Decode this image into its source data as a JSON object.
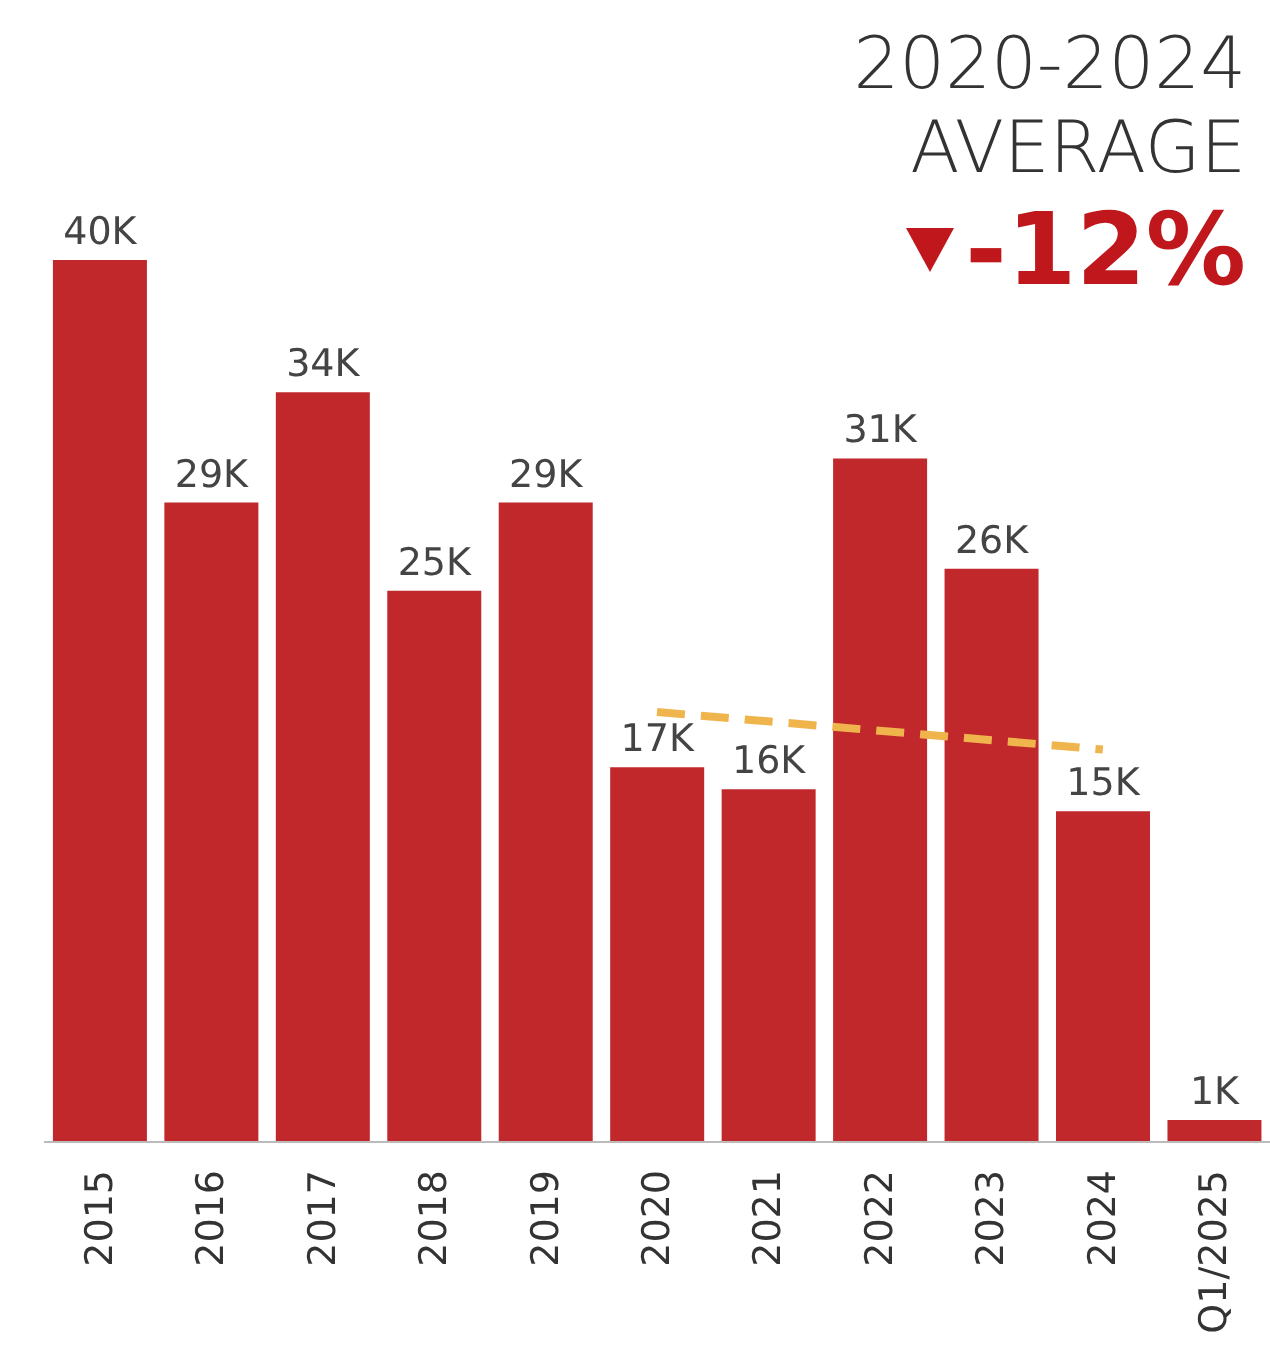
{
  "chart_data": {
    "type": "bar",
    "title": "2020-2024\nAVERAGE",
    "annotations": [
      "-12%"
    ],
    "categories": [
      "2015",
      "2016",
      "2017",
      "2018",
      "2019",
      "2020",
      "2021",
      "2022",
      "2023",
      "2024",
      "Q1/2025"
    ],
    "series": [
      {
        "color": "#c0282b",
        "values": [
          40,
          29,
          34,
          25,
          29,
          17,
          16,
          31,
          26,
          15,
          1
        ],
        "value_labels": [
          "40K",
          "29K",
          "34K",
          "25K",
          "29K",
          "17K",
          "16K",
          "31K",
          "26K",
          "15K",
          "1K"
        ]
      },
      {
        "type": "line",
        "color": "#f0b44c",
        "values": [
          null,
          null,
          null,
          null,
          null,
          19.5,
          null,
          null,
          null,
          17.8,
          null
        ],
        "line_style": "dashed",
        "marker": "none"
      }
    ],
    "ylim": [
      0,
      40
    ],
    "tick_labels": "x"
  }
}
